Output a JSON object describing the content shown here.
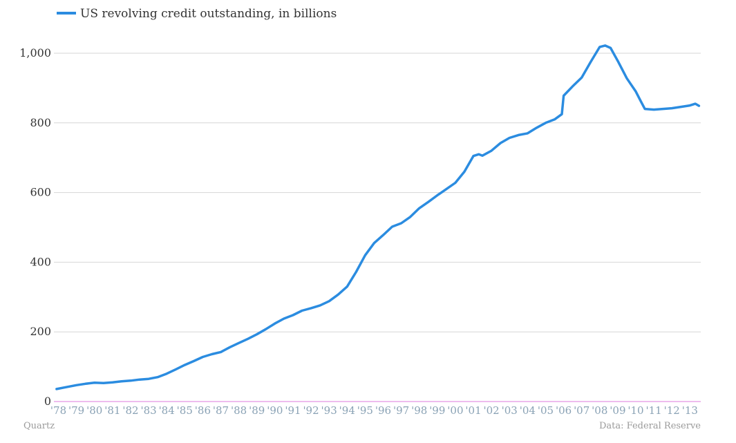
{
  "chart_data": {
    "type": "line",
    "x_unit": "year",
    "ylim": [
      0,
      1050
    ],
    "grid": true,
    "legend_position": "top-left",
    "series": [
      {
        "name": "US revolving credit outstanding, in billions",
        "color": "#2b8ce0",
        "points": [
          [
            1977.9,
            36
          ],
          [
            1978.3,
            40
          ],
          [
            1978.7,
            44
          ],
          [
            1979.0,
            47
          ],
          [
            1979.5,
            51
          ],
          [
            1980.0,
            54
          ],
          [
            1980.5,
            53
          ],
          [
            1981.0,
            55
          ],
          [
            1981.5,
            58
          ],
          [
            1982.0,
            60
          ],
          [
            1982.5,
            63
          ],
          [
            1983.0,
            65
          ],
          [
            1983.5,
            70
          ],
          [
            1984.0,
            80
          ],
          [
            1984.5,
            92
          ],
          [
            1985.0,
            105
          ],
          [
            1985.5,
            116
          ],
          [
            1986.0,
            128
          ],
          [
            1986.5,
            136
          ],
          [
            1987.0,
            142
          ],
          [
            1987.5,
            156
          ],
          [
            1988.0,
            168
          ],
          [
            1988.5,
            180
          ],
          [
            1989.0,
            193
          ],
          [
            1989.5,
            208
          ],
          [
            1990.0,
            224
          ],
          [
            1990.5,
            238
          ],
          [
            1991.0,
            248
          ],
          [
            1991.5,
            261
          ],
          [
            1992.0,
            268
          ],
          [
            1992.5,
            276
          ],
          [
            1993.0,
            288
          ],
          [
            1993.5,
            307
          ],
          [
            1994.0,
            330
          ],
          [
            1994.5,
            372
          ],
          [
            1995.0,
            420
          ],
          [
            1995.5,
            455
          ],
          [
            1996.0,
            478
          ],
          [
            1996.5,
            502
          ],
          [
            1997.0,
            512
          ],
          [
            1997.5,
            530
          ],
          [
            1998.0,
            555
          ],
          [
            1998.5,
            573
          ],
          [
            1999.0,
            592
          ],
          [
            1999.5,
            610
          ],
          [
            2000.0,
            628
          ],
          [
            2000.5,
            660
          ],
          [
            2001.0,
            705
          ],
          [
            2001.3,
            710
          ],
          [
            2001.5,
            706
          ],
          [
            2002.0,
            720
          ],
          [
            2002.5,
            742
          ],
          [
            2003.0,
            757
          ],
          [
            2003.5,
            765
          ],
          [
            2004.0,
            770
          ],
          [
            2004.5,
            786
          ],
          [
            2005.0,
            800
          ],
          [
            2005.5,
            810
          ],
          [
            2005.9,
            825
          ],
          [
            2006.0,
            878
          ],
          [
            2006.5,
            905
          ],
          [
            2007.0,
            930
          ],
          [
            2007.5,
            975
          ],
          [
            2008.0,
            1018
          ],
          [
            2008.3,
            1022
          ],
          [
            2008.6,
            1015
          ],
          [
            2009.0,
            978
          ],
          [
            2009.5,
            928
          ],
          [
            2010.0,
            890
          ],
          [
            2010.3,
            860
          ],
          [
            2010.5,
            840
          ],
          [
            2011.0,
            838
          ],
          [
            2011.5,
            840
          ],
          [
            2012.0,
            842
          ],
          [
            2012.5,
            846
          ],
          [
            2013.0,
            850
          ],
          [
            2013.3,
            855
          ],
          [
            2013.5,
            849
          ]
        ]
      }
    ],
    "y_ticks": [
      {
        "value": 0,
        "label": "0"
      },
      {
        "value": 200,
        "label": "200"
      },
      {
        "value": 400,
        "label": "400"
      },
      {
        "value": 600,
        "label": "600"
      },
      {
        "value": 800,
        "label": "800"
      },
      {
        "value": 1000,
        "label": "1,000"
      }
    ],
    "x_ticks": [
      {
        "value": 1978,
        "label": "'78"
      },
      {
        "value": 1979,
        "label": "'79"
      },
      {
        "value": 1980,
        "label": "'80"
      },
      {
        "value": 1981,
        "label": "'81"
      },
      {
        "value": 1982,
        "label": "'82"
      },
      {
        "value": 1983,
        "label": "'83"
      },
      {
        "value": 1984,
        "label": "'84"
      },
      {
        "value": 1985,
        "label": "'85"
      },
      {
        "value": 1986,
        "label": "'86"
      },
      {
        "value": 1987,
        "label": "'87"
      },
      {
        "value": 1988,
        "label": "'88"
      },
      {
        "value": 1989,
        "label": "'89"
      },
      {
        "value": 1990,
        "label": "'90"
      },
      {
        "value": 1991,
        "label": "'91"
      },
      {
        "value": 1992,
        "label": "'92"
      },
      {
        "value": 1993,
        "label": "'93"
      },
      {
        "value": 1994,
        "label": "'94"
      },
      {
        "value": 1995,
        "label": "'95"
      },
      {
        "value": 1996,
        "label": "'96"
      },
      {
        "value": 1997,
        "label": "'97"
      },
      {
        "value": 1998,
        "label": "'98"
      },
      {
        "value": 1999,
        "label": "'99"
      },
      {
        "value": 2000,
        "label": "'00"
      },
      {
        "value": 2001,
        "label": "'01"
      },
      {
        "value": 2002,
        "label": "'02"
      },
      {
        "value": 2003,
        "label": "'03"
      },
      {
        "value": 2004,
        "label": "'04"
      },
      {
        "value": 2005,
        "label": "'05"
      },
      {
        "value": 2006,
        "label": "'06"
      },
      {
        "value": 2007,
        "label": "'07"
      },
      {
        "value": 2008,
        "label": "'08"
      },
      {
        "value": 2009,
        "label": "'09"
      },
      {
        "value": 2010,
        "label": "'10"
      },
      {
        "value": 2011,
        "label": "'11"
      },
      {
        "value": 2012,
        "label": "'12"
      },
      {
        "value": 2013,
        "label": "'13"
      }
    ],
    "zero_line_color": "#e9a6e9"
  },
  "footer": {
    "source_left": "Quartz",
    "source_right": "Data: Federal Reserve"
  }
}
